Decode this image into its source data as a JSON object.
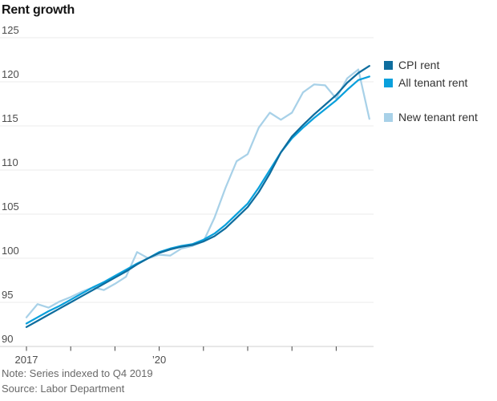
{
  "chart_data": {
    "type": "line",
    "title": "Rent growth",
    "note": "Note: Series indexed to Q4 2019",
    "source": "Source: Labor Department",
    "grid": true,
    "legend_position": "right",
    "ylim": [
      90,
      125
    ],
    "y_ticks": [
      90,
      95,
      100,
      105,
      110,
      115,
      120,
      125
    ],
    "x": [
      "2017 Q1",
      "2017 Q2",
      "2017 Q3",
      "2017 Q4",
      "2018 Q1",
      "2018 Q2",
      "2018 Q3",
      "2018 Q4",
      "2019 Q1",
      "2019 Q2",
      "2019 Q3",
      "2019 Q4",
      "2020 Q1",
      "2020 Q2",
      "2020 Q3",
      "2020 Q4",
      "2021 Q1",
      "2021 Q2",
      "2021 Q3",
      "2021 Q4",
      "2022 Q1",
      "2022 Q2",
      "2022 Q3",
      "2022 Q4",
      "2023 Q1",
      "2023 Q2",
      "2023 Q3",
      "2023 Q4",
      "2024 Q1",
      "2024 Q2",
      "2024 Q3",
      "2024 Q4"
    ],
    "year_tick_indices": [
      0,
      4,
      8,
      12,
      16,
      20,
      24,
      28
    ],
    "x_tick_labels": [
      {
        "label": "2017",
        "index": 0
      },
      {
        "label": "’20",
        "index": 12
      }
    ],
    "series": [
      {
        "name": "CPI rent",
        "color": "#0e6d9e",
        "values": [
          92.2,
          92.9,
          93.6,
          94.3,
          95.0,
          95.7,
          96.4,
          97.1,
          97.8,
          98.5,
          99.3,
          100.0,
          100.6,
          101.0,
          101.3,
          101.5,
          101.9,
          102.5,
          103.4,
          104.6,
          105.8,
          107.5,
          109.6,
          112.0,
          113.8,
          115.1,
          116.3,
          117.4,
          118.5,
          119.9,
          121.0,
          121.8
        ]
      },
      {
        "name": "All tenant rent",
        "color": "#09a0dc",
        "values": [
          92.6,
          93.3,
          94.0,
          94.6,
          95.3,
          96.0,
          96.7,
          97.3,
          98.0,
          98.7,
          99.4,
          100.0,
          100.7,
          101.1,
          101.4,
          101.6,
          102.1,
          102.8,
          103.8,
          105.0,
          106.2,
          108.0,
          110.0,
          112.0,
          113.6,
          114.8,
          115.9,
          116.9,
          117.9,
          119.1,
          120.2,
          120.6
        ]
      },
      {
        "name": "New tenant rent",
        "color": "#a8d1e8",
        "values": [
          93.3,
          94.8,
          94.4,
          95.1,
          95.6,
          96.2,
          96.7,
          96.4,
          97.1,
          97.9,
          100.7,
          100.0,
          100.4,
          100.3,
          101.1,
          101.4,
          101.9,
          104.6,
          108.0,
          111.0,
          111.8,
          114.8,
          116.5,
          115.7,
          116.5,
          118.8,
          119.7,
          119.6,
          118.1,
          120.4,
          121.4,
          115.8
        ]
      }
    ]
  },
  "axis_style": {
    "gridline_color": "#ebebeb",
    "axis_line_color": "#cfcfcf",
    "tick_color": "#444444",
    "tick_label_color": "#4d4d4d"
  }
}
